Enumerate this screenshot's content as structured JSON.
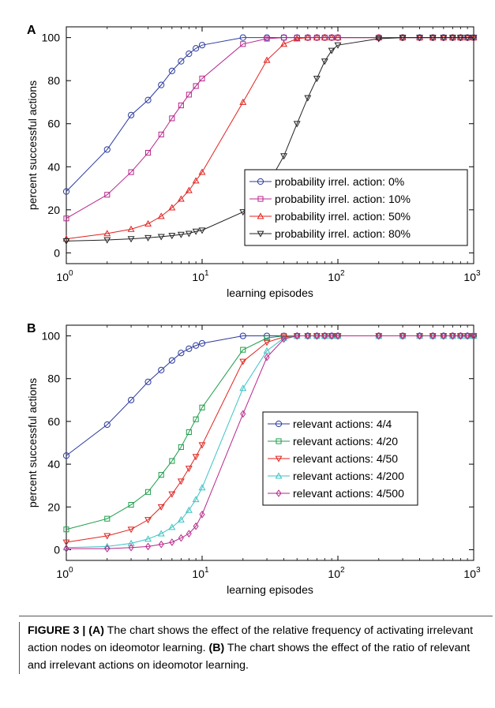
{
  "caption": {
    "figure_label": "FIGURE 3 |",
    "a_label": "(A)",
    "a_text": " The chart shows the effect of the relative frequency of activating irrelevant action nodes on ideomotor learning. ",
    "b_label": "(B)",
    "b_text": " The chart shows the effect of the ratio of relevant and irrelevant actions on ideomotor learning."
  },
  "chart_data": [
    {
      "panel": "A",
      "type": "line",
      "xscale": "log",
      "xlim": [
        1,
        1000
      ],
      "ylim": [
        -5,
        105
      ],
      "xlabel": "learning episodes",
      "ylabel": "percent successful actions",
      "yticks": [
        0,
        20,
        40,
        60,
        80,
        100
      ],
      "xticks": [
        {
          "value": 1,
          "base": "10",
          "exp": "0"
        },
        {
          "value": 10,
          "base": "10",
          "exp": "1"
        },
        {
          "value": 100,
          "base": "10",
          "exp": "2"
        },
        {
          "value": 1000,
          "base": "10",
          "exp": "3"
        }
      ],
      "legend_position": "center-right",
      "x": [
        1,
        2,
        3,
        4,
        5,
        6,
        7,
        8,
        9,
        10,
        20,
        30,
        40,
        50,
        60,
        70,
        80,
        90,
        100,
        200,
        300,
        400,
        500,
        600,
        700,
        800,
        900,
        1000
      ],
      "series": [
        {
          "name": "probability irrel. action: 0%",
          "color": "#2b3a9e",
          "marker": "circle",
          "values": [
            28.5,
            48,
            64,
            71,
            78,
            84.5,
            89,
            92.5,
            95,
            96.5,
            100,
            100,
            100,
            100,
            100,
            100,
            100,
            100,
            100,
            100,
            100,
            100,
            100,
            100,
            100,
            100,
            100,
            100
          ]
        },
        {
          "name": "probability irrel. action: 10%",
          "color": "#b8268c",
          "marker": "square",
          "values": [
            16,
            27,
            37.5,
            46.5,
            55,
            62.5,
            68.5,
            73.5,
            77.5,
            81,
            97,
            99.5,
            100,
            100,
            100,
            100,
            100,
            100,
            100,
            100,
            100,
            100,
            100,
            100,
            100,
            100,
            100,
            100
          ]
        },
        {
          "name": "probability irrel. action: 50%",
          "color": "#e0201d",
          "marker": "triangle-up",
          "values": [
            6.5,
            9,
            11,
            13.5,
            17,
            21,
            25,
            29,
            33.5,
            37.5,
            70,
            89.5,
            97,
            99.5,
            100,
            100,
            100,
            100,
            100,
            100,
            100,
            100,
            100,
            100,
            100,
            100,
            100,
            100
          ]
        },
        {
          "name": "probability irrel. action: 80%",
          "color": "#222222",
          "marker": "triangle-down",
          "values": [
            5.5,
            6,
            6.5,
            7,
            7.5,
            8,
            8.5,
            9,
            10,
            10.5,
            19,
            31,
            45,
            60,
            72,
            81,
            89,
            94,
            96.5,
            99.5,
            100,
            100,
            100,
            100,
            100,
            100,
            100,
            100
          ]
        }
      ]
    },
    {
      "panel": "B",
      "type": "line",
      "xscale": "log",
      "xlim": [
        1,
        1000
      ],
      "ylim": [
        -5,
        105
      ],
      "xlabel": "learning episodes",
      "ylabel": "percent successful actions",
      "yticks": [
        0,
        20,
        40,
        60,
        80,
        100
      ],
      "xticks": [
        {
          "value": 1,
          "base": "10",
          "exp": "0"
        },
        {
          "value": 10,
          "base": "10",
          "exp": "1"
        },
        {
          "value": 100,
          "base": "10",
          "exp": "2"
        },
        {
          "value": 1000,
          "base": "10",
          "exp": "3"
        }
      ],
      "legend_position": "center-right",
      "x": [
        1,
        2,
        3,
        4,
        5,
        6,
        7,
        8,
        9,
        10,
        20,
        30,
        40,
        50,
        60,
        70,
        80,
        90,
        100,
        200,
        300,
        400,
        500,
        600,
        700,
        800,
        900,
        1000
      ],
      "series": [
        {
          "name": "relevant actions: 4/4",
          "color": "#2b3a9e",
          "marker": "circle",
          "values": [
            44,
            58.5,
            70,
            78.5,
            84,
            88.5,
            92,
            94,
            95.5,
            96.5,
            100,
            100,
            100,
            100,
            100,
            100,
            100,
            100,
            100,
            100,
            100,
            100,
            100,
            100,
            100,
            100,
            100,
            100
          ]
        },
        {
          "name": "relevant actions: 4/20",
          "color": "#1f9d4c",
          "marker": "square",
          "values": [
            9.5,
            14.5,
            21,
            27,
            35,
            41.5,
            48,
            55,
            61,
            66.5,
            93.5,
            99,
            100,
            100,
            100,
            100,
            100,
            100,
            100,
            100,
            100,
            100,
            100,
            100,
            100,
            100,
            100,
            100
          ]
        },
        {
          "name": "relevant actions: 4/50",
          "color": "#e0201d",
          "marker": "triangle-down",
          "values": [
            3.5,
            6.5,
            9.5,
            14,
            20,
            26,
            32,
            38,
            43.5,
            49,
            88,
            97,
            99.5,
            100,
            100,
            100,
            100,
            100,
            100,
            100,
            100,
            100,
            100,
            100,
            100,
            100,
            100,
            100
          ]
        },
        {
          "name": "relevant actions: 4/200",
          "color": "#3cc3c3",
          "marker": "triangle-up",
          "values": [
            1,
            1.5,
            3,
            5,
            7.5,
            10.5,
            14,
            18.5,
            23.5,
            29,
            75.5,
            93,
            99,
            100,
            100,
            100,
            100,
            100,
            100,
            100,
            100,
            100,
            100,
            100,
            100,
            100,
            100,
            100
          ]
        },
        {
          "name": "relevant actions: 4/500",
          "color": "#b8268c",
          "marker": "diamond",
          "values": [
            0.5,
            0.5,
            1,
            1.5,
            2.5,
            3.5,
            5.5,
            7.5,
            11,
            16.5,
            63.5,
            90,
            98.5,
            100,
            100,
            100,
            100,
            100,
            100,
            100,
            100,
            100,
            100,
            100,
            100,
            100,
            100,
            100
          ]
        }
      ]
    }
  ]
}
